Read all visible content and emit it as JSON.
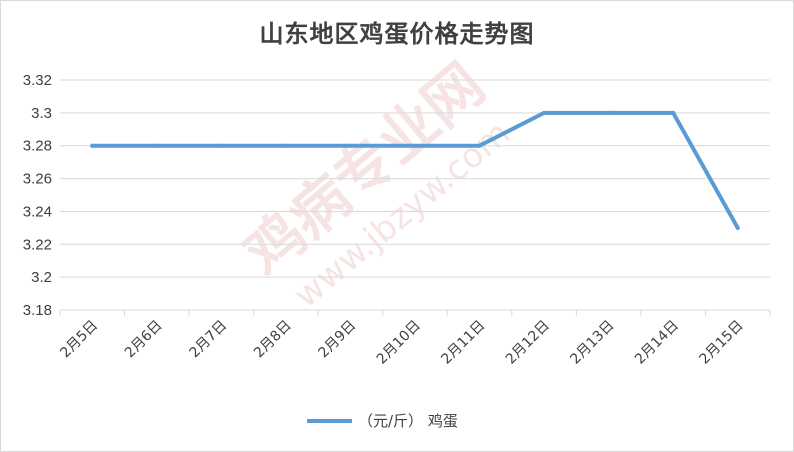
{
  "chart_data": {
    "type": "line",
    "title": "山东地区鸡蛋价格走势图",
    "categories": [
      "2月5日",
      "2月6日",
      "2月7日",
      "2月8日",
      "2月9日",
      "2月10日",
      "2月11日",
      "2月12日",
      "2月13日",
      "2月14日",
      "2月15日"
    ],
    "series": [
      {
        "name": "（元/斤） 鸡蛋",
        "values": [
          3.28,
          3.28,
          3.28,
          3.28,
          3.28,
          3.28,
          3.28,
          3.3,
          3.3,
          3.3,
          3.23
        ],
        "color": "#5b9bd5"
      }
    ],
    "ylim": [
      3.18,
      3.32
    ],
    "yticks": [
      "3.18",
      "3.2",
      "3.22",
      "3.24",
      "3.26",
      "3.28",
      "3.3",
      "3.32"
    ],
    "grid": true,
    "legend": "bottom"
  },
  "watermark": {
    "line1": "鸡病专业网",
    "line2": "www.jbzyw.com"
  }
}
